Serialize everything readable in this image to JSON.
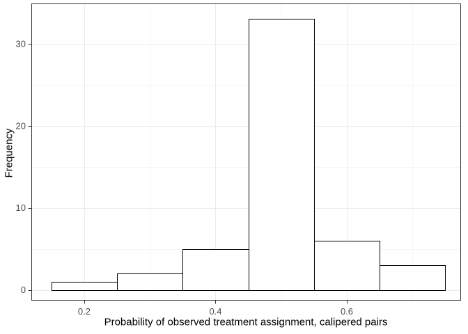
{
  "chart_data": {
    "type": "bar",
    "subtype": "histogram",
    "title": "",
    "xlabel": "Probability of observed treatment assignment, calipered pairs",
    "ylabel": "Frequency",
    "bin_start": 0.15,
    "bin_width": 0.1,
    "bin_edges": [
      0.15,
      0.25,
      0.35,
      0.45,
      0.55,
      0.65,
      0.75
    ],
    "values": [
      1,
      2,
      5,
      33,
      6,
      3
    ],
    "x_ticks": [
      0.2,
      0.4,
      0.6
    ],
    "x_tick_labels": [
      "0.2",
      "0.4",
      "0.6"
    ],
    "x_minor_gridlines": [
      0.3,
      0.5,
      0.7
    ],
    "y_ticks": [
      0,
      10,
      20,
      30
    ],
    "y_tick_labels": [
      "0",
      "10",
      "20",
      "30"
    ],
    "y_minor_gridlines": [
      5,
      15,
      25
    ],
    "xlim": [
      0.1194,
      0.774
    ],
    "ylim": [
      -1.3,
      34.9
    ],
    "grid": true,
    "legend": "none",
    "colors": {
      "background": "#FFFFFF",
      "panel_background": "#FFFFFF",
      "panel_border": "#333333",
      "grid_major": "#EBEBEB",
      "grid_minor": "#F5F5F5",
      "bar_fill": "#FFFFFF",
      "bar_stroke": "#000000",
      "tick_mark": "#333333",
      "tick_label": "#4D4D4D",
      "axis_title": "#000000"
    }
  }
}
